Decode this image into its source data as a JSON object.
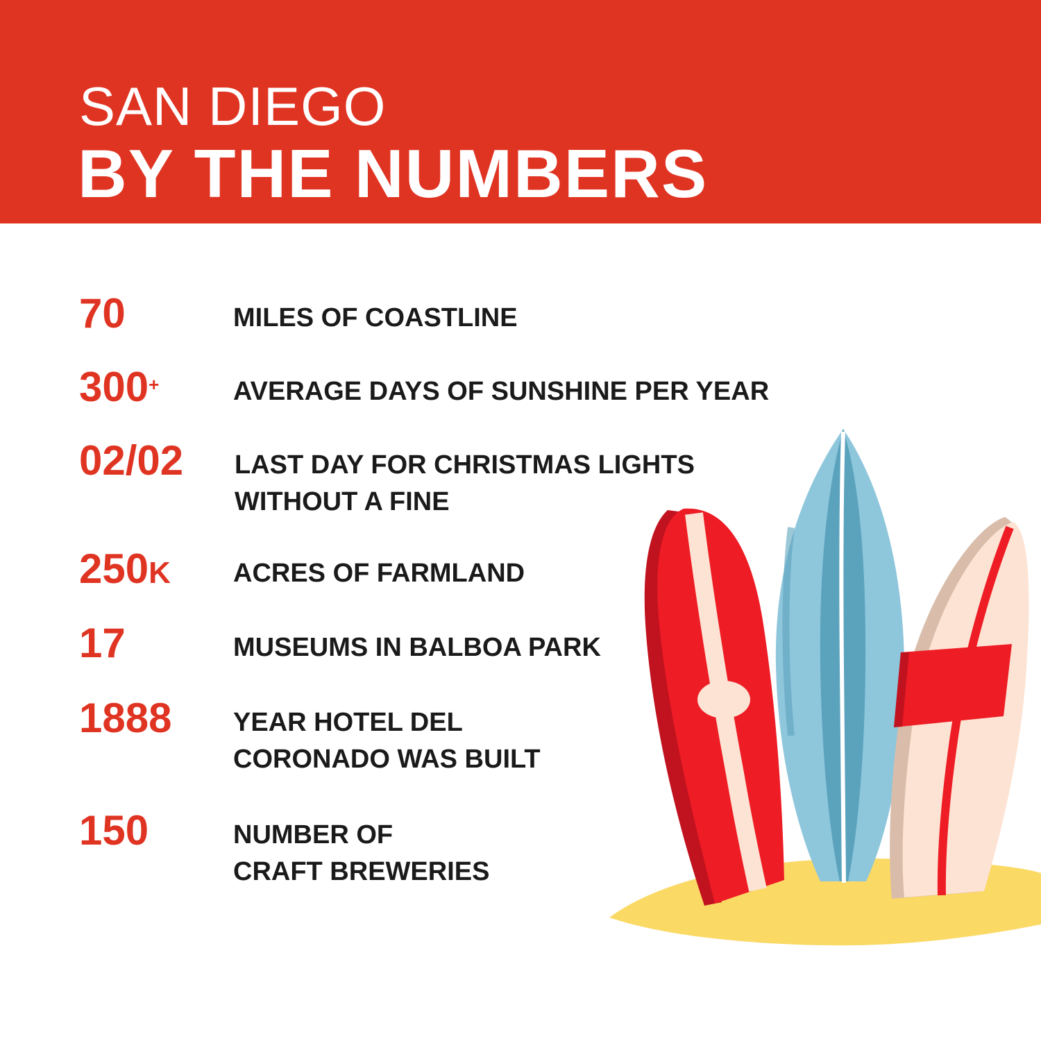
{
  "header": {
    "title_line1": "SAN DIEGO",
    "title_line2": "BY THE NUMBERS",
    "background_color": "#e03423"
  },
  "stats": [
    {
      "value": "70",
      "label_line1": "MILES OF COASTLINE",
      "label_line2": ""
    },
    {
      "value": "300",
      "value_sup": "+",
      "label_line1": "AVERAGE DAYS OF SUNSHINE PER YEAR",
      "label_line2": ""
    },
    {
      "value": "02/02",
      "label_line1": "LAST DAY FOR CHRISTMAS LIGHTS",
      "label_line2": "WITHOUT A FINE"
    },
    {
      "value": "250",
      "value_suffix": "K",
      "label_line1": "ACRES OF FARMLAND",
      "label_line2": ""
    },
    {
      "value": "17",
      "label_line1": "MUSEUMS IN BALBOA PARK",
      "label_line2": ""
    },
    {
      "value": "1888",
      "label_line1": "YEAR HOTEL DEL",
      "label_line2": "CORONADO WAS BUILT"
    },
    {
      "value": "150",
      "label_line1": "NUMBER OF",
      "label_line2": "CRAFT BREWERIES"
    }
  ],
  "illustration": {
    "icon": "surfboards-on-sand-illustration",
    "colors": {
      "red": "#ee1c25",
      "dark_red": "#c1121f",
      "cream": "#fde3d3",
      "blue": "#8ec6dc",
      "dark_blue": "#5ba3bd",
      "sand": "#fbd965"
    }
  }
}
